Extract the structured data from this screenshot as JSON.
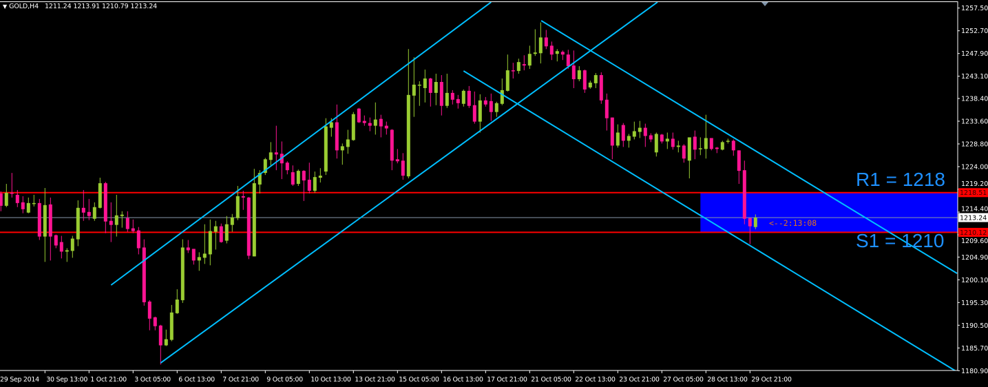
{
  "header": {
    "symbol": "GOLD,H4",
    "open": "1211.24",
    "high": "1213.91",
    "low": "1210.79",
    "close": "1213.24",
    "menu_icon": "triangle-down-icon"
  },
  "colors": {
    "background": "#000000",
    "bull": "#9ACD32",
    "bear": "#FF1493",
    "trendline": "#00BFFF",
    "level_line": "#FF0000",
    "zone_fill": "#0000FF",
    "bid_line": "#8899AA",
    "annotation": "#1E90FF",
    "timer": "#E0701F"
  },
  "annotations": {
    "r1": "R1 = 1218",
    "s1": "S1 = 1210",
    "timer": "<--2:13:08"
  },
  "chart_data": {
    "type": "candlestick",
    "title": "GOLD,H4",
    "ylim": [
      1180.9,
      1257.5
    ],
    "grid": false,
    "y_ticks": [
      "1257.50",
      "1252.70",
      "1247.90",
      "1243.10",
      "1238.40",
      "1233.60",
      "1228.80",
      "1224.00",
      "1219.20",
      "1214.40",
      "1209.60",
      "1204.90",
      "1200.10",
      "1195.30",
      "1190.50",
      "1185.70",
      "1180.90"
    ],
    "x_tick_labels": [
      "29 Sep 2014",
      "30 Sep 13:00",
      "1 Oct 21:00",
      "3 Oct 05:00",
      "6 Oct 13:00",
      "7 Oct 21:00",
      "9 Oct 05:00",
      "10 Oct 13:00",
      "13 Oct 21:00",
      "15 Oct 05:00",
      "16 Oct 13:00",
      "17 Oct 21:00",
      "21 Oct 05:00",
      "22 Oct 13:00",
      "23 Oct 21:00",
      "27 Oct 05:00",
      "28 Oct 13:00",
      "29 Oct 21:00"
    ],
    "x_tick_every_bars": 8,
    "ohlc_fields": [
      "open",
      "high",
      "low",
      "close"
    ],
    "ohlc": [
      [
        1218.34,
        1218.77,
        1214.58,
        1215.73
      ],
      [
        1215.73,
        1220.36,
        1215.45,
        1218.48
      ],
      [
        1218.48,
        1222.67,
        1217.47,
        1218.34
      ],
      [
        1218.05,
        1219.06,
        1215.45,
        1216.31
      ],
      [
        1216.46,
        1217.76,
        1214.15,
        1215.01
      ],
      [
        1214.29,
        1217.47,
        1214.15,
        1216.31
      ],
      [
        1216.17,
        1218.05,
        1215.59,
        1216.31
      ],
      [
        1216.31,
        1217.18,
        1208.51,
        1209.23
      ],
      [
        1209.23,
        1219.49,
        1203.88,
        1215.88
      ],
      [
        1216.02,
        1217.47,
        1204.17,
        1209.23
      ],
      [
        1209.52,
        1209.66,
        1206.77,
        1207.35
      ],
      [
        1208.07,
        1209.38,
        1204.61,
        1206.05
      ],
      [
        1206.05,
        1206.77,
        1203.88,
        1206.34
      ],
      [
        1206.2,
        1209.38,
        1204.75,
        1208.8
      ],
      [
        1208.65,
        1216.89,
        1207.21,
        1215.3
      ],
      [
        1215.3,
        1219.06,
        1212.55,
        1214.29
      ],
      [
        1214.43,
        1217.18,
        1212.7,
        1213.57
      ],
      [
        1212.99,
        1216.46,
        1212.55,
        1215.45
      ],
      [
        1215.3,
        1221.66,
        1215.16,
        1220.5
      ],
      [
        1220.5,
        1220.79,
        1209.95,
        1212.41
      ],
      [
        1212.55,
        1216.46,
        1208.07,
        1211.69
      ],
      [
        1211.69,
        1218.05,
        1209.23,
        1213.71
      ],
      [
        1213.57,
        1214.58,
        1211.11,
        1213.86
      ],
      [
        1213.13,
        1214.58,
        1210.24,
        1210.82
      ],
      [
        1210.97,
        1212.84,
        1209.95,
        1210.39
      ],
      [
        1210.53,
        1211.25,
        1205.47,
        1206.77
      ],
      [
        1206.92,
        1208.65,
        1194.63,
        1195.36
      ],
      [
        1195.5,
        1195.79,
        1189.43,
        1191.89
      ],
      [
        1192.18,
        1192.32,
        1189.43,
        1190.3
      ],
      [
        1190.44,
        1190.59,
        1182.2,
        1186.25
      ],
      [
        1186.25,
        1189.57,
        1186.11,
        1187.55
      ],
      [
        1187.41,
        1194.78,
        1187.12,
        1193.19
      ],
      [
        1193.04,
        1198.1,
        1192.9,
        1195.93
      ],
      [
        1195.79,
        1208.65,
        1195.21,
        1206.92
      ],
      [
        1206.92,
        1208.51,
        1205.76,
        1206.34
      ],
      [
        1206.63,
        1206.63,
        1203.31,
        1204.17
      ],
      [
        1204.17,
        1205.91,
        1202.0,
        1204.89
      ],
      [
        1204.75,
        1211.83,
        1203.45,
        1205.62
      ],
      [
        1205.47,
        1212.84,
        1203.16,
        1210.39
      ],
      [
        1210.24,
        1212.55,
        1206.48,
        1211.4
      ],
      [
        1211.4,
        1211.98,
        1207.93,
        1208.07
      ],
      [
        1208.36,
        1213.57,
        1207.79,
        1211.83
      ],
      [
        1211.69,
        1214.0,
        1210.24,
        1213.28
      ],
      [
        1213.13,
        1219.93,
        1212.7,
        1217.76
      ],
      [
        1217.76,
        1218.91,
        1214.87,
        1217.47
      ],
      [
        1217.47,
        1217.61,
        1204.46,
        1205.18
      ],
      [
        1205.04,
        1223.54,
        1205.04,
        1220.5
      ],
      [
        1220.22,
        1223.25,
        1218.34,
        1222.67
      ],
      [
        1222.67,
        1225.85,
        1222.24,
        1225.56
      ],
      [
        1225.42,
        1229.18,
        1224.26,
        1227.01
      ],
      [
        1227.01,
        1232.64,
        1223.25,
        1226.57
      ],
      [
        1226.72,
        1229.32,
        1221.37,
        1224.7
      ],
      [
        1224.84,
        1225.13,
        1222.38,
        1223.25
      ],
      [
        1222.82,
        1224.26,
        1219.93,
        1220.22
      ],
      [
        1220.36,
        1223.39,
        1219.93,
        1223.11
      ],
      [
        1223.11,
        1223.25,
        1216.75,
        1221.08
      ],
      [
        1221.23,
        1224.84,
        1218.34,
        1218.91
      ],
      [
        1218.91,
        1222.96,
        1218.48,
        1221.8
      ],
      [
        1221.66,
        1223.68,
        1220.65,
        1222.09
      ],
      [
        1222.96,
        1234.23,
        1222.24,
        1232.5
      ],
      [
        1232.21,
        1234.23,
        1230.33,
        1233.37
      ],
      [
        1233.37,
        1237.12,
        1225.71,
        1227.44
      ],
      [
        1227.44,
        1228.89,
        1224.41,
        1228.31
      ],
      [
        1228.16,
        1231.78,
        1226.72,
        1229.75
      ],
      [
        1229.61,
        1235.54,
        1229.47,
        1235.1
      ],
      [
        1236.26,
        1236.4,
        1233.22,
        1233.37
      ],
      [
        1233.66,
        1234.81,
        1232.64,
        1233.22
      ],
      [
        1233.22,
        1234.38,
        1231.49,
        1232.64
      ],
      [
        1232.64,
        1237.56,
        1230.77,
        1233.95
      ],
      [
        1234.09,
        1234.96,
        1230.19,
        1232.5
      ],
      [
        1232.64,
        1233.51,
        1230.77,
        1232.07
      ],
      [
        1231.78,
        1231.92,
        1223.25,
        1225.27
      ],
      [
        1225.56,
        1227.73,
        1224.7,
        1225.13
      ],
      [
        1225.27,
        1226.86,
        1221.23,
        1222.09
      ],
      [
        1221.95,
        1248.83,
        1221.52,
        1239.15
      ],
      [
        1239.0,
        1247.1,
        1234.52,
        1241.32
      ],
      [
        1241.17,
        1242.04,
        1236.84,
        1241.32
      ],
      [
        1240.59,
        1244.5,
        1237.56,
        1242.62
      ],
      [
        1242.62,
        1242.76,
        1236.69,
        1239.58
      ],
      [
        1239.58,
        1243.63,
        1236.98,
        1241.89
      ],
      [
        1241.89,
        1243.34,
        1234.81,
        1236.84
      ],
      [
        1236.84,
        1243.63,
        1236.4,
        1239.58
      ],
      [
        1239.58,
        1240.16,
        1237.13,
        1238.14
      ],
      [
        1238.28,
        1239.15,
        1236.26,
        1237.41
      ],
      [
        1237.27,
        1240.3,
        1236.69,
        1240.02
      ],
      [
        1240.02,
        1241.03,
        1236.4,
        1236.84
      ],
      [
        1236.98,
        1239.87,
        1233.08,
        1233.51
      ],
      [
        1233.51,
        1239.29,
        1231.2,
        1237.99
      ],
      [
        1237.99,
        1238.71,
        1236.69,
        1237.13
      ],
      [
        1237.85,
        1239.44,
        1233.66,
        1235.54
      ],
      [
        1235.54,
        1237.7,
        1234.52,
        1237.41
      ],
      [
        1237.27,
        1242.62,
        1236.98,
        1240.16
      ],
      [
        1240.02,
        1247.68,
        1239.87,
        1244.35
      ],
      [
        1244.35,
        1245.94,
        1242.62,
        1244.21
      ],
      [
        1244.21,
        1246.81,
        1243.63,
        1246.09
      ],
      [
        1245.65,
        1247.53,
        1244.35,
        1245.36
      ],
      [
        1245.36,
        1249.55,
        1244.64,
        1247.82
      ],
      [
        1247.82,
        1253.02,
        1247.39,
        1248.11
      ],
      [
        1247.96,
        1254.47,
        1245.8,
        1251.29
      ],
      [
        1251.29,
        1252.88,
        1248.83,
        1249.41
      ],
      [
        1249.55,
        1250.42,
        1246.52,
        1247.68
      ],
      [
        1247.82,
        1248.83,
        1246.23,
        1248.4
      ],
      [
        1248.25,
        1248.54,
        1246.52,
        1247.68
      ],
      [
        1247.68,
        1248.69,
        1244.64,
        1245.22
      ],
      [
        1245.36,
        1248.54,
        1240.59,
        1242.47
      ],
      [
        1242.47,
        1245.22,
        1242.04,
        1244.35
      ],
      [
        1244.35,
        1244.5,
        1239.58,
        1240.3
      ],
      [
        1240.74,
        1242.18,
        1240.45,
        1241.75
      ],
      [
        1241.61,
        1243.77,
        1240.59,
        1243.34
      ],
      [
        1243.34,
        1243.92,
        1237.27,
        1237.99
      ],
      [
        1238.14,
        1239.44,
        1231.63,
        1234.23
      ],
      [
        1234.38,
        1234.38,
        1225.56,
        1228.45
      ],
      [
        1228.45,
        1232.93,
        1228.02,
        1231.2
      ],
      [
        1232.79,
        1233.22,
        1228.16,
        1229.47
      ],
      [
        1229.47,
        1230.91,
        1228.02,
        1230.48
      ],
      [
        1230.33,
        1233.51,
        1229.75,
        1231.49
      ],
      [
        1231.34,
        1233.66,
        1230.04,
        1232.21
      ],
      [
        1232.21,
        1233.08,
        1228.16,
        1230.48
      ],
      [
        1230.62,
        1231.05,
        1229.18,
        1229.75
      ],
      [
        1227.01,
        1231.2,
        1226.14,
        1230.91
      ],
      [
        1230.77,
        1230.91,
        1228.89,
        1229.32
      ],
      [
        1229.32,
        1231.2,
        1227.73,
        1229.9
      ],
      [
        1229.9,
        1231.2,
        1227.59,
        1228.16
      ],
      [
        1228.16,
        1229.47,
        1227.01,
        1228.45
      ],
      [
        1228.45,
        1228.74,
        1224.84,
        1225.71
      ],
      [
        1225.27,
        1230.19,
        1221.52,
        1230.19
      ],
      [
        1230.33,
        1231.63,
        1225.56,
        1227.59
      ],
      [
        1227.73,
        1230.19,
        1226.43,
        1227.88
      ],
      [
        1227.73,
        1234.96,
        1225.71,
        1230.04
      ],
      [
        1230.04,
        1230.04,
        1227.44,
        1227.73
      ],
      [
        1228.02,
        1228.16,
        1226.86,
        1227.73
      ],
      [
        1227.59,
        1229.47,
        1227.44,
        1229.18
      ],
      [
        1229.32,
        1229.9,
        1228.89,
        1229.47
      ],
      [
        1229.47,
        1229.75,
        1226.29,
        1227.44
      ],
      [
        1227.44,
        1227.44,
        1220.36,
        1223.11
      ],
      [
        1223.25,
        1225.27,
        1211.83,
        1212.99
      ],
      [
        1213.13,
        1213.13,
        1207.64,
        1211.4
      ],
      [
        1211.24,
        1213.91,
        1210.79,
        1213.24
      ]
    ],
    "horizontal_levels": [
      {
        "price": 1218.51,
        "label": "1218.51",
        "kind": "resistance"
      },
      {
        "price": 1210.12,
        "label": "1210.12",
        "kind": "support"
      }
    ],
    "bid": {
      "price": 1213.24,
      "label": "1213.24"
    },
    "zone": {
      "from_bar": 127,
      "top": 1218.51,
      "bottom": 1210.12
    },
    "trendlines": [
      {
        "from": [
          20,
          1198.98
        ],
        "to": [
          89,
          1258.76
        ]
      },
      {
        "from": [
          29,
          1182.54
        ],
        "to": [
          119.2,
          1258.76
        ]
      },
      {
        "from": [
          98.1,
          1254.84
        ],
        "to": [
          173.6,
          1201.45
        ]
      },
      {
        "from": [
          84,
          1244.22
        ],
        "to": [
          173.6,
          1180.65
        ]
      }
    ]
  }
}
